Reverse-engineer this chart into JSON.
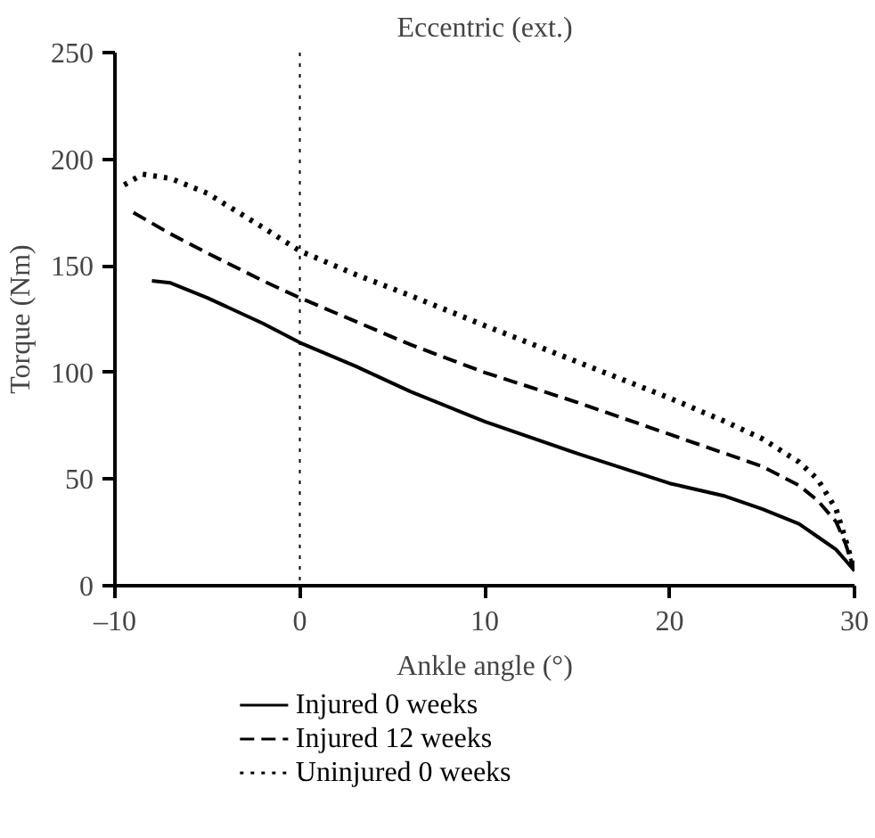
{
  "chart_data": {
    "type": "line",
    "title": "Eccentric (ext.)",
    "xlabel": "Ankle angle (°)",
    "ylabel": "Torque (Nm)",
    "xlim": [
      -10,
      30
    ],
    "ylim": [
      0,
      250
    ],
    "xticks": [
      {
        "value": -10,
        "label": "–10"
      },
      0,
      10,
      20,
      30
    ],
    "yticks": [
      0,
      50,
      100,
      150,
      200,
      250
    ],
    "grid": false,
    "legend": "bottom",
    "ref_lines": [
      {
        "axis": "x",
        "value": 0,
        "line_style": "dotted",
        "color": "#000000"
      }
    ],
    "series": [
      {
        "name": "Injured 0 weeks",
        "color": "#000000",
        "line_style": "solid",
        "x": [
          -8,
          -7,
          -5,
          -2,
          0,
          3,
          6,
          10,
          15,
          20,
          23,
          25,
          27,
          28,
          29,
          29.5,
          30
        ],
        "values": [
          143,
          142,
          135,
          123,
          114,
          103,
          91,
          77,
          62,
          48,
          42,
          36,
          29,
          23,
          17,
          12,
          7
        ]
      },
      {
        "name": "Injured 12 weeks",
        "color": "#000000",
        "line_style": "dashed",
        "x": [
          -9,
          -7,
          -5,
          -2,
          0,
          3,
          6,
          10,
          15,
          20,
          23,
          25,
          27,
          28,
          29,
          29.5,
          30
        ],
        "values": [
          175,
          165,
          156,
          143,
          135,
          124,
          113,
          100,
          86,
          71,
          62,
          56,
          47,
          40,
          30,
          20,
          7
        ]
      },
      {
        "name": "Uninjured 0 weeks",
        "color": "#000000",
        "line_style": "dotted",
        "x": [
          -9.5,
          -8.5,
          -7,
          -5,
          -2,
          0,
          3,
          6,
          10,
          15,
          20,
          23,
          25,
          27,
          28,
          29,
          29.5,
          30
        ],
        "values": [
          188,
          193,
          191,
          184,
          168,
          157,
          146,
          136,
          122,
          105,
          88,
          77,
          69,
          58,
          50,
          36,
          22,
          7
        ]
      }
    ]
  }
}
